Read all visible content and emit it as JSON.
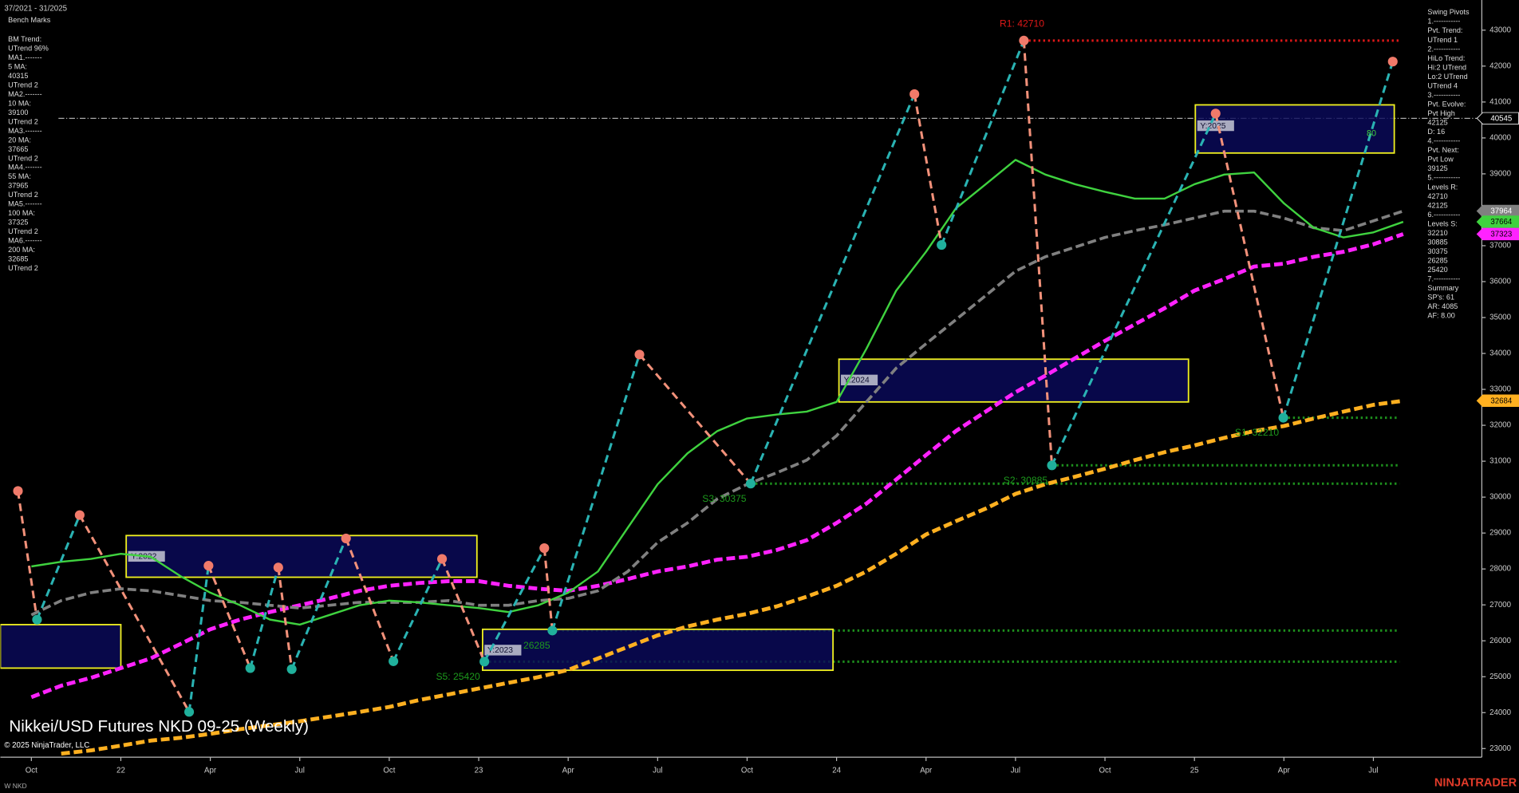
{
  "chart_data": {
    "type": "line",
    "title": "Nikkei/USD Futures NKD 09-25 (Weekly)",
    "date_range": "37/2021 - 31/2025",
    "copyright": "© 2025 NinjaTrader, LLC",
    "symbol": "W NKD",
    "brand": "NINJATRADER",
    "categories": [
      "Oct",
      null,
      null,
      "22",
      null,
      null,
      "Apr",
      null,
      null,
      "Jul",
      null,
      null,
      "Oct",
      null,
      null,
      "23",
      null,
      null,
      "Apr",
      null,
      null,
      "Jul",
      null,
      null,
      "Oct",
      null,
      null,
      "24",
      null,
      null,
      "Apr",
      null,
      null,
      "Jul",
      null,
      null,
      "Oct",
      null,
      null,
      "25",
      null,
      null,
      "Apr",
      null,
      null,
      "Jul",
      null
    ],
    "ylim": [
      22760,
      43840
    ],
    "yticks": [
      23000,
      24000,
      25000,
      26000,
      27000,
      28000,
      29000,
      30000,
      31000,
      32000,
      33000,
      34000,
      35000,
      36000,
      37000,
      38000,
      39000,
      40000,
      41000,
      42000,
      43000
    ],
    "series": [
      {
        "color": "#ffb020",
        "dash": true,
        "width": 4,
        "values": [
          null,
          22860,
          22950,
          23080,
          23220,
          23300,
          23410,
          23540,
          23650,
          23760,
          23890,
          24020,
          24160,
          24350,
          24510,
          24670,
          24830,
          24990,
          25190,
          25510,
          25830,
          26150,
          26400,
          26590,
          26750,
          26960,
          27230,
          27530,
          27930,
          28420,
          28960,
          29330,
          29680,
          30090,
          30360,
          30570,
          30790,
          31030,
          31250,
          31440,
          31650,
          31840,
          31980,
          32190,
          32380,
          32570,
          32684
        ]
      },
      {
        "color": "#ff22ff",
        "dash": true,
        "width": 4,
        "values": [
          24430,
          24750,
          24970,
          25240,
          25510,
          25910,
          26320,
          26590,
          26800,
          26990,
          27180,
          27390,
          27530,
          27610,
          27660,
          27660,
          27530,
          27450,
          27390,
          27530,
          27720,
          27930,
          28070,
          28260,
          28340,
          28530,
          28800,
          29280,
          29820,
          30490,
          31170,
          31840,
          32380,
          32920,
          33380,
          33870,
          34350,
          34810,
          35260,
          35750,
          36070,
          36420,
          36500,
          36690,
          36830,
          37040,
          37323
        ]
      },
      {
        "color": "#808080",
        "dash": true,
        "width": 3,
        "values": [
          26720,
          27120,
          27340,
          27450,
          27390,
          27260,
          27120,
          27070,
          26990,
          26910,
          26990,
          27070,
          27070,
          27070,
          27120,
          26990,
          26990,
          27120,
          27180,
          27390,
          27930,
          28740,
          29280,
          29950,
          30360,
          30680,
          31030,
          31710,
          32650,
          33590,
          34270,
          34940,
          35610,
          36290,
          36690,
          36960,
          37230,
          37420,
          37580,
          37770,
          37960,
          37960,
          37770,
          37500,
          37420,
          37690,
          37964
        ]
      },
      {
        "color": "#3fd23f",
        "dash": false,
        "width": 2,
        "values": [
          28070,
          28200,
          28280,
          28420,
          28340,
          27800,
          27340,
          26990,
          26590,
          26450,
          26720,
          26990,
          27120,
          27070,
          26990,
          26910,
          26800,
          26990,
          27340,
          27930,
          29150,
          30360,
          31220,
          31840,
          32190,
          32300,
          32380,
          32650,
          34130,
          35750,
          36830,
          38040,
          38710,
          39390,
          38980,
          38710,
          38500,
          38310,
          38310,
          38710,
          38980,
          39040,
          38180,
          37500,
          37230,
          37370,
          37664
        ]
      }
    ],
    "pivots": {
      "x": [
        -0.45,
        0.19,
        1.62,
        5.29,
        5.94,
        7.34,
        8.28,
        8.73,
        10.55,
        12.14,
        13.77,
        15.19,
        17.2,
        17.47,
        20.39,
        24.12,
        29.61,
        30.52,
        33.28,
        34.22,
        39.71,
        41.98,
        45.65
      ],
      "values": [
        30170,
        26590,
        29500,
        24020,
        28090,
        25240,
        28040,
        25210,
        28850,
        25430,
        28280,
        25420,
        28580,
        26285,
        33970,
        30375,
        41220,
        37020,
        42710,
        30885,
        40680,
        32210,
        42125
      ],
      "up_color": "#2ab3b3",
      "down_color": "#f2917a",
      "high_color": "#f07a6a",
      "low_color": "#20b09c"
    },
    "levels": [
      {
        "label": "R1: 42710",
        "value": 42710,
        "from": 33.28,
        "color": "#e01818"
      },
      {
        "label": "S1: 32210",
        "value": 32210,
        "from": 41.98,
        "color": "#1d8f1d"
      },
      {
        "label": "S2: 30885",
        "value": 30885,
        "from": 34.22,
        "color": "#1d8f1d"
      },
      {
        "label": "S3: 30375",
        "value": 30375,
        "from": 24.12,
        "color": "#1d8f1d"
      },
      {
        "label": "26285",
        "value": 26285,
        "from": 17.47,
        "color": "#1d8f1d"
      },
      {
        "label": "S5: 25420",
        "value": 25420,
        "from": 15.19,
        "color": "#1d8f1d"
      }
    ],
    "yearly_boxes": [
      {
        "high": 26450,
        "low": 25240,
        "x": [
          -1.04,
          3.0
        ]
      },
      {
        "label": "Y:2022",
        "high": 28930,
        "low": 27770,
        "x": [
          3.18,
          14.94
        ]
      },
      {
        "label": "Y:2023",
        "high": 26320,
        "low": 25180,
        "x": [
          15.13,
          26.88
        ]
      },
      {
        "label": "Y:2024",
        "high": 33840,
        "low": 32650,
        "x": [
          27.08,
          38.8
        ]
      },
      {
        "label": "Y:2025",
        "high": 40920,
        "low": 39580,
        "x": [
          39.03,
          45.7
        ]
      }
    ],
    "annotation": "80",
    "reference_line": 40545,
    "price_labels": [
      {
        "value": 40545,
        "color": "#000000",
        "text_color": "#ffffff"
      },
      {
        "value": 37964,
        "color": "#808080",
        "text_color": "#ffffff"
      },
      {
        "value": 37664,
        "color": "#3fd23f",
        "text_color": "#000000"
      },
      {
        "value": 37323,
        "color": "#ff22ff",
        "text_color": "#000000"
      },
      {
        "value": 32684,
        "color": "#ffb020",
        "text_color": "#000000"
      }
    ],
    "left_panel": [
      "Bench Marks",
      "BM Trend:",
      "UTrend 96%",
      "MA1.-------",
      "5 MA:",
      "40315",
      "UTrend 2",
      "MA2.-------",
      "10 MA:",
      "39100",
      "UTrend 2",
      "MA3.-------",
      "20 MA:",
      "37665",
      "UTrend 2",
      "MA4.-------",
      "55 MA:",
      "37965",
      "UTrend 2",
      "MA5.-------",
      "100 MA:",
      "37325",
      "UTrend 2",
      "MA6.-------",
      "200 MA:",
      "32685",
      "UTrend 2"
    ],
    "right_panel": [
      "Swing Pivots",
      "1.-----------",
      "Pvt. Trend:",
      "UTrend 1",
      "2.-----------",
      "HiLo Trend:",
      "Hi:2 UTrend",
      "Lo:2 UTrend",
      "UTrend 4",
      "3.-----------",
      "Pvt. Evolve:",
      "Pvt High",
      "42125",
      "D: 16",
      "4.-----------",
      "Pvt. Next:",
      "Pvt Low",
      "39125",
      "5.-----------",
      "Levels R:",
      "42710",
      "42125",
      "6.-----------",
      "Levels S:",
      "32210",
      "30885",
      "30375",
      "26285",
      "25420",
      "7.-----------",
      "Summary",
      "SP's: 61",
      "AR: 4085",
      "AF: 8.00"
    ]
  }
}
